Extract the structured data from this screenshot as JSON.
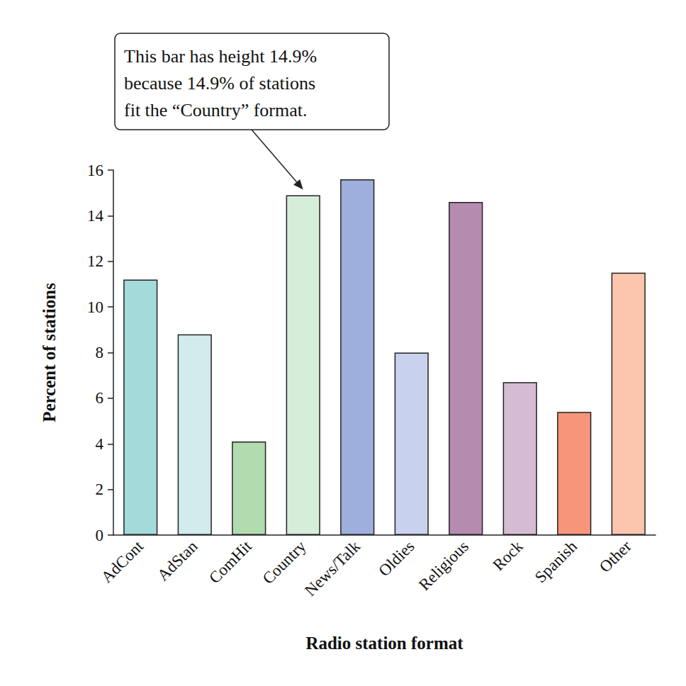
{
  "chart_data": {
    "type": "bar",
    "x_label": "Radio station format",
    "y_label": "Percent of stations",
    "categories": [
      "AdCont",
      "AdStan",
      "ComHit",
      "Country",
      "News/Talk",
      "Oldies",
      "Religious",
      "Rock",
      "Spanish",
      "Other"
    ],
    "values": [
      11.2,
      8.8,
      4.1,
      14.9,
      15.6,
      8.0,
      14.6,
      6.7,
      5.4,
      11.5
    ],
    "colors": [
      "#a4dad9",
      "#d2ebed",
      "#b2dbb0",
      "#d6edda",
      "#9eaedd",
      "#c8d1ee",
      "#b68bb0",
      "#d6bcd2",
      "#f7957b",
      "#fcc6ae"
    ],
    "ylim": [
      0,
      16
    ],
    "yticks": [
      0,
      2,
      4,
      6,
      8,
      10,
      12,
      14,
      16
    ],
    "grid": false,
    "annotation": {
      "text": [
        "This bar has height 14.9%",
        "because 14.9% of stations",
        "fit the “Country” format."
      ],
      "category": "Country"
    }
  }
}
